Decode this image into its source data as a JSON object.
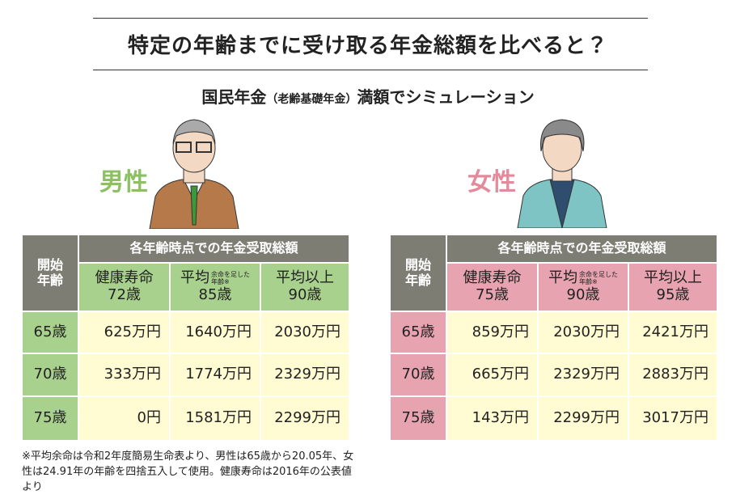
{
  "header": {
    "title": "特定の年齢までに受け取る年金総額を比べると？",
    "subtitle": {
      "main": "国民年金",
      "paren": "（老齢基礎年金）",
      "rest": "満額でシミュレーション"
    }
  },
  "tables": [
    {
      "gender": "男性",
      "color": "#a9d18e",
      "text_color": "#8cc063",
      "corner": "開始\n年齢",
      "group": "各年齢時点での年金受取総額",
      "columns": [
        {
          "name": "健康寿命",
          "age": "72歳"
        },
        {
          "name": "平均",
          "note": "余命を足した\n年齢※",
          "age": "85歳"
        },
        {
          "name": "平均以上",
          "age": "90歳"
        }
      ],
      "rows": [
        {
          "label": "65歳",
          "cells": [
            "625万円",
            "1640万円",
            "2030万円"
          ]
        },
        {
          "label": "70歳",
          "cells": [
            "333万円",
            "1774万円",
            "2329万円"
          ]
        },
        {
          "label": "75歳",
          "cells": [
            "0円",
            "1581万円",
            "2299万円"
          ]
        }
      ]
    },
    {
      "gender": "女性",
      "color": "#e8a3b0",
      "text_color": "#e38a9c",
      "corner": "開始\n年齢",
      "group": "各年齢時点での年金受取総額",
      "columns": [
        {
          "name": "健康寿命",
          "age": "75歳"
        },
        {
          "name": "平均",
          "note": "余命を足した\n年齢※",
          "age": "90歳"
        },
        {
          "name": "平均以上",
          "age": "95歳"
        }
      ],
      "rows": [
        {
          "label": "65歳",
          "cells": [
            "859万円",
            "2030万円",
            "2421万円"
          ]
        },
        {
          "label": "70歳",
          "cells": [
            "665万円",
            "2329万円",
            "2883万円"
          ]
        },
        {
          "label": "75歳",
          "cells": [
            "143万円",
            "2299万円",
            "3017万円"
          ]
        }
      ]
    }
  ],
  "footnote": "※平均余命は令和2年度簡易生命表より、男性は65歳から20.05年、女性は24.91年の年齢を四捨五入して使用。健康寿命は2016年の公表値より"
}
